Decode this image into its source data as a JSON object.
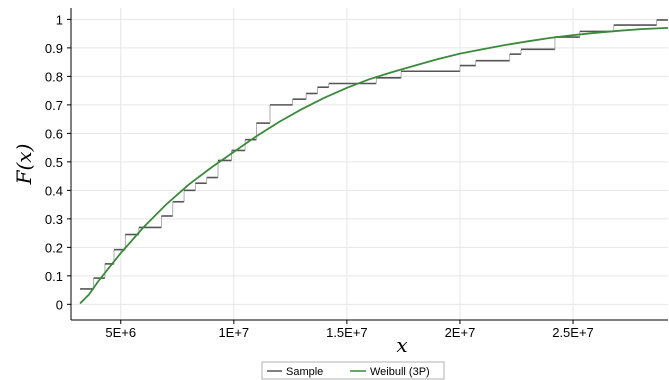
{
  "chart_data": {
    "type": "line",
    "xlabel": "x",
    "ylabel": "F(x)",
    "xlim": [
      2800000,
      29200000
    ],
    "ylim": [
      -0.055,
      1.04
    ],
    "x_ticks": [
      {
        "value": 5000000,
        "label": "5E+6"
      },
      {
        "value": 10000000,
        "label": "1E+7"
      },
      {
        "value": 15000000,
        "label": "1.5E+7"
      },
      {
        "value": 20000000,
        "label": "2E+7"
      },
      {
        "value": 25000000,
        "label": "2.5E+7"
      }
    ],
    "y_ticks": [
      {
        "value": 0,
        "label": "0"
      },
      {
        "value": 0.1,
        "label": "0.1"
      },
      {
        "value": 0.2,
        "label": "0.2"
      },
      {
        "value": 0.3,
        "label": "0.3"
      },
      {
        "value": 0.4,
        "label": "0.4"
      },
      {
        "value": 0.5,
        "label": "0.5"
      },
      {
        "value": 0.6,
        "label": "0.6"
      },
      {
        "value": 0.7,
        "label": "0.7"
      },
      {
        "value": 0.8,
        "label": "0.8"
      },
      {
        "value": 0.9,
        "label": "0.9"
      },
      {
        "value": 1,
        "label": "1"
      }
    ],
    "grid": true,
    "legend_position": "bottom",
    "series": [
      {
        "name": "Sample",
        "kind": "step",
        "color": "#555555",
        "points": [
          [
            3200000,
            0.054
          ],
          [
            3800000,
            0.092
          ],
          [
            4300000,
            0.142
          ],
          [
            4700000,
            0.192
          ],
          [
            5200000,
            0.245
          ],
          [
            5800000,
            0.27
          ],
          [
            6800000,
            0.31
          ],
          [
            7300000,
            0.36
          ],
          [
            7800000,
            0.4
          ],
          [
            8300000,
            0.425
          ],
          [
            8800000,
            0.445
          ],
          [
            9300000,
            0.505
          ],
          [
            9900000,
            0.54
          ],
          [
            10500000,
            0.578
          ],
          [
            11000000,
            0.636
          ],
          [
            11600000,
            0.7
          ],
          [
            12600000,
            0.72
          ],
          [
            13200000,
            0.74
          ],
          [
            13700000,
            0.762
          ],
          [
            14200000,
            0.775
          ],
          [
            16300000,
            0.795
          ],
          [
            17400000,
            0.818
          ],
          [
            20000000,
            0.838
          ],
          [
            20700000,
            0.855
          ],
          [
            22200000,
            0.878
          ],
          [
            22700000,
            0.895
          ],
          [
            24200000,
            0.938
          ],
          [
            25300000,
            0.958
          ],
          [
            26800000,
            0.98
          ],
          [
            28700000,
            0.998
          ]
        ],
        "end_x": 29200000
      },
      {
        "name": "Weibull (3P)",
        "kind": "line",
        "color": "#3a8a3a",
        "points": [
          [
            3200000,
            0.003
          ],
          [
            3600000,
            0.035
          ],
          [
            4000000,
            0.08
          ],
          [
            5000000,
            0.18
          ],
          [
            6000000,
            0.27
          ],
          [
            7000000,
            0.35
          ],
          [
            8000000,
            0.42
          ],
          [
            9000000,
            0.48
          ],
          [
            10000000,
            0.535
          ],
          [
            11000000,
            0.59
          ],
          [
            12000000,
            0.64
          ],
          [
            13000000,
            0.685
          ],
          [
            14000000,
            0.725
          ],
          [
            15000000,
            0.76
          ],
          [
            16000000,
            0.79
          ],
          [
            17000000,
            0.815
          ],
          [
            18000000,
            0.838
          ],
          [
            19000000,
            0.86
          ],
          [
            20000000,
            0.88
          ],
          [
            21000000,
            0.895
          ],
          [
            22000000,
            0.91
          ],
          [
            23000000,
            0.923
          ],
          [
            24000000,
            0.935
          ],
          [
            25000000,
            0.945
          ],
          [
            26000000,
            0.953
          ],
          [
            27000000,
            0.96
          ],
          [
            28000000,
            0.966
          ],
          [
            29200000,
            0.97
          ]
        ]
      }
    ]
  }
}
